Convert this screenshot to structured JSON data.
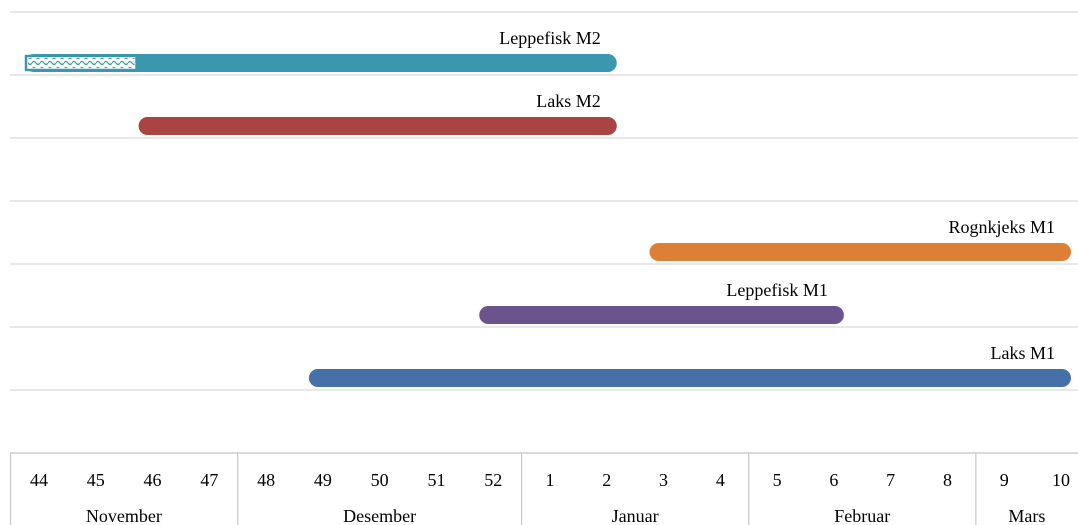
{
  "chart_data": {
    "type": "gantt",
    "x_axis": {
      "week_labels": [
        "44",
        "45",
        "46",
        "47",
        "48",
        "49",
        "50",
        "51",
        "52",
        "1",
        "2",
        "3",
        "4",
        "5",
        "6",
        "7",
        "8",
        "9",
        "10"
      ],
      "month_groups": [
        {
          "label": "November",
          "first_week_index": 0,
          "week_count": 4
        },
        {
          "label": "Desember",
          "first_week_index": 4,
          "week_count": 5
        },
        {
          "label": "Januar",
          "first_week_index": 9,
          "week_count": 4
        },
        {
          "label": "Februar",
          "first_week_index": 13,
          "week_count": 4
        },
        {
          "label": "Mars",
          "first_week_index": 17,
          "week_count": 2
        }
      ]
    },
    "series": [
      {
        "name": "Leppefisk M2",
        "start_week_index": 0,
        "end_week_index": 10,
        "color": "#3a97ad",
        "hatched_until_week_index": 2
      },
      {
        "name": "Laks M2",
        "start_week_index": 2,
        "end_week_index": 10,
        "color": "#a94442"
      },
      {
        "name": "Rognkjeks M1",
        "start_week_index": 11,
        "end_week_index": 18,
        "color": "#dd7f35"
      },
      {
        "name": "Leppefisk M1",
        "start_week_index": 8,
        "end_week_index": 14,
        "color": "#6b548d"
      },
      {
        "name": "Laks M1",
        "start_week_index": 5,
        "end_week_index": 18,
        "color": "#4671a8"
      }
    ],
    "row_order": [
      "Leppefisk M2",
      "Laks M2",
      "",
      "Rognkjeks M1",
      "Leppefisk M1",
      "Laks M1"
    ],
    "grid": true,
    "legend": "none"
  }
}
